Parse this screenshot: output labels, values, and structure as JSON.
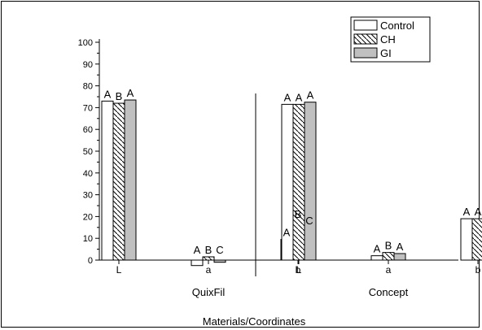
{
  "chart_data": {
    "type": "bar",
    "title": "",
    "xlabel": "Materials/Coordinates",
    "ylabel": "",
    "ylim": [
      0,
      100
    ],
    "yticks": [
      0,
      10,
      20,
      30,
      40,
      50,
      60,
      70,
      80,
      90,
      100
    ],
    "groups": [
      "QuixFil",
      "Concept"
    ],
    "categories": [
      "L",
      "a",
      "b"
    ],
    "series": [
      {
        "name": "Control",
        "pattern": "empty",
        "color": "#ffffff"
      },
      {
        "name": "CH",
        "pattern": "hatch",
        "color": "#ffffff"
      },
      {
        "name": "GI",
        "pattern": "solid",
        "color": "#c0c0c0"
      }
    ],
    "values": {
      "QuixFil": {
        "Control": [
          73,
          -2.5,
          9.5
        ],
        "CH": [
          72,
          1.5,
          18
        ],
        "GI": [
          73.5,
          -1,
          15
        ]
      },
      "Concept": {
        "Control": [
          71.5,
          2,
          19
        ],
        "CH": [
          71.5,
          3.5,
          19
        ],
        "GI": [
          72.5,
          3,
          15.5
        ]
      }
    },
    "significance_letters": {
      "QuixFil": {
        "Control": [
          "A",
          "A",
          "A"
        ],
        "CH": [
          "B",
          "B",
          "B"
        ],
        "GI": [
          "A",
          "C",
          "C"
        ]
      },
      "Concept": {
        "Control": [
          "A",
          "A",
          "A"
        ],
        "CH": [
          "A",
          "B",
          "A"
        ],
        "GI": [
          "A",
          "A",
          "B"
        ]
      }
    },
    "legend_position": "top-right",
    "grid": false
  }
}
